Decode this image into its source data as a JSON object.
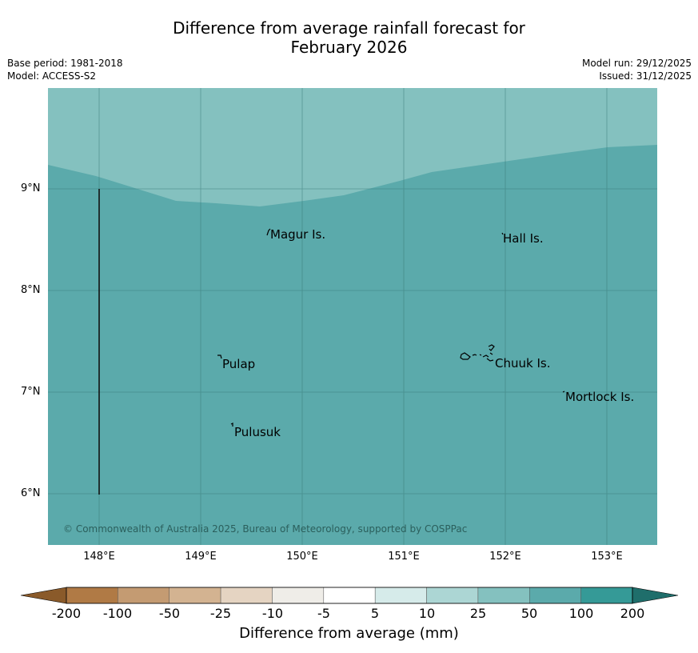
{
  "title": {
    "line1": "Difference from average rainfall forecast for",
    "line2": "February 2026"
  },
  "meta": {
    "base_period": "Base period: 1981-2018",
    "model": "Model: ACCESS-S2",
    "model_run": "Model run: 29/12/2025",
    "issued": "Issued: 31/12/2025"
  },
  "map": {
    "lat_labels": [
      "9°N",
      "8°N",
      "7°N",
      "6°N"
    ],
    "lon_labels": [
      "148°E",
      "149°E",
      "150°E",
      "151°E",
      "152°E",
      "153°E"
    ],
    "places": {
      "magur": "Magur Is.",
      "hall": "Hall Is.",
      "pulap": "Pulap",
      "chuuk": "Chuuk Is.",
      "mortlock": "Mortlock Is.",
      "pulusuk": "Pulusuk"
    },
    "copyright": "© Commonwealth of Australia 2025, Bureau of Meteorology, supported by COSPPac",
    "colors": {
      "band_25_50": "#84c1bf",
      "band_50_100": "#5baaab",
      "grid": "#3a7a78"
    }
  },
  "colorbar": {
    "ticks": [
      "-200",
      "-100",
      "-50",
      "-25",
      "-10",
      "-5",
      "5",
      "10",
      "25",
      "50",
      "100",
      "200"
    ],
    "colors": [
      "#8a5a2a",
      "#b07a45",
      "#c49b72",
      "#d3b391",
      "#e5d4c2",
      "#efede8",
      "#ffffff",
      "#d6ebea",
      "#acd6d4",
      "#84c1bf",
      "#5baaab",
      "#359a97",
      "#1f6e6b"
    ],
    "label": "Difference from average (mm)"
  }
}
